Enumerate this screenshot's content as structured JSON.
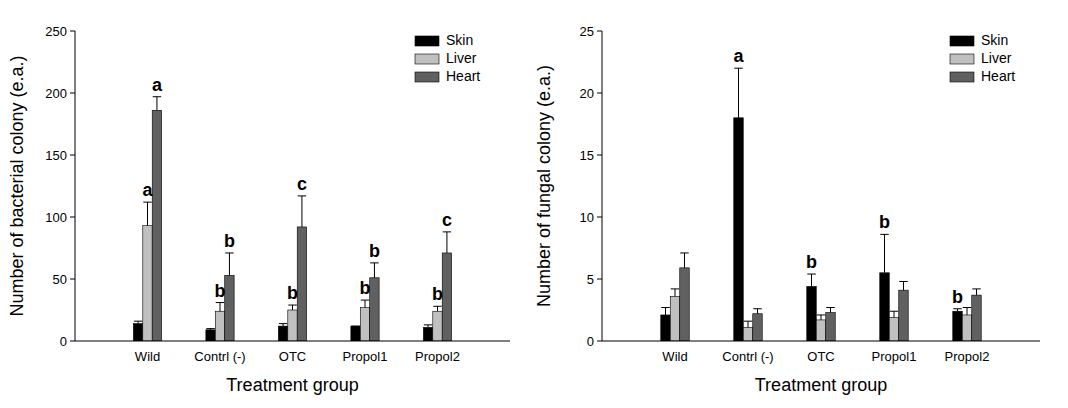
{
  "chart_data": [
    {
      "type": "bar",
      "x_label": "Treatment group",
      "y_label": "Number of bacterial colony (e.a.)",
      "categories": [
        "Wild",
        "Contrl (-)",
        "OTC",
        "Propol1",
        "Propol2"
      ],
      "series": [
        {
          "name": "Skin",
          "color": "#000000",
          "values": [
            14,
            9,
            12,
            12,
            11
          ],
          "errors": [
            2,
            1,
            2,
            0,
            2
          ]
        },
        {
          "name": "Liver",
          "color": "#c0c0c0",
          "values": [
            93,
            24,
            25,
            27,
            24
          ],
          "errors": [
            19,
            7,
            4,
            6,
            4
          ]
        },
        {
          "name": "Heart",
          "color": "#606060",
          "values": [
            186,
            53,
            92,
            51,
            71
          ],
          "errors": [
            11,
            18,
            25,
            12,
            17
          ]
        }
      ],
      "ylim": [
        0,
        250
      ],
      "yticks": [
        0,
        50,
        100,
        150,
        200,
        250
      ],
      "legend": "upper right",
      "annotations": [
        {
          "text": "a",
          "series": "Liver",
          "category": "Wild"
        },
        {
          "text": "a",
          "series": "Heart",
          "category": "Wild"
        },
        {
          "text": "b",
          "series": "Liver",
          "category": "Contrl (-)"
        },
        {
          "text": "b",
          "series": "Heart",
          "category": "Contrl (-)"
        },
        {
          "text": "b",
          "series": "Liver",
          "category": "OTC"
        },
        {
          "text": "c",
          "series": "Heart",
          "category": "OTC"
        },
        {
          "text": "b",
          "series": "Liver",
          "category": "Propol1"
        },
        {
          "text": "b",
          "series": "Heart",
          "category": "Propol1"
        },
        {
          "text": "b",
          "series": "Liver",
          "category": "Propol2"
        },
        {
          "text": "c",
          "series": "Heart",
          "category": "Propol2"
        }
      ]
    },
    {
      "type": "bar",
      "x_label": "Treatment group",
      "y_label": "Number of fungal colony (e.a.)",
      "categories": [
        "Wild",
        "Contrl (-)",
        "OTC",
        "Propol1",
        "Propol2"
      ],
      "series": [
        {
          "name": "Skin",
          "color": "#000000",
          "values": [
            2.1,
            18,
            4.4,
            5.5,
            2.4
          ],
          "errors": [
            0.6,
            4,
            1,
            3.1,
            0.2
          ]
        },
        {
          "name": "Liver",
          "color": "#c0c0c0",
          "values": [
            3.6,
            1.1,
            1.7,
            1.9,
            2.1
          ],
          "errors": [
            0.6,
            0.5,
            0.4,
            0.5,
            0.6
          ]
        },
        {
          "name": "Heart",
          "color": "#606060",
          "values": [
            5.9,
            2.2,
            2.3,
            4.1,
            3.7
          ],
          "errors": [
            1.2,
            0.4,
            0.4,
            0.7,
            0.5
          ]
        }
      ],
      "ylim": [
        0,
        25
      ],
      "yticks": [
        0,
        5,
        10,
        15,
        20,
        25
      ],
      "legend": "upper right",
      "annotations": [
        {
          "text": "a",
          "series": "Skin",
          "category": "Contrl (-)"
        },
        {
          "text": "b",
          "series": "Skin",
          "category": "OTC"
        },
        {
          "text": "b",
          "series": "Skin",
          "category": "Propol1"
        },
        {
          "text": "b",
          "series": "Skin",
          "category": "Propol2"
        }
      ]
    }
  ]
}
